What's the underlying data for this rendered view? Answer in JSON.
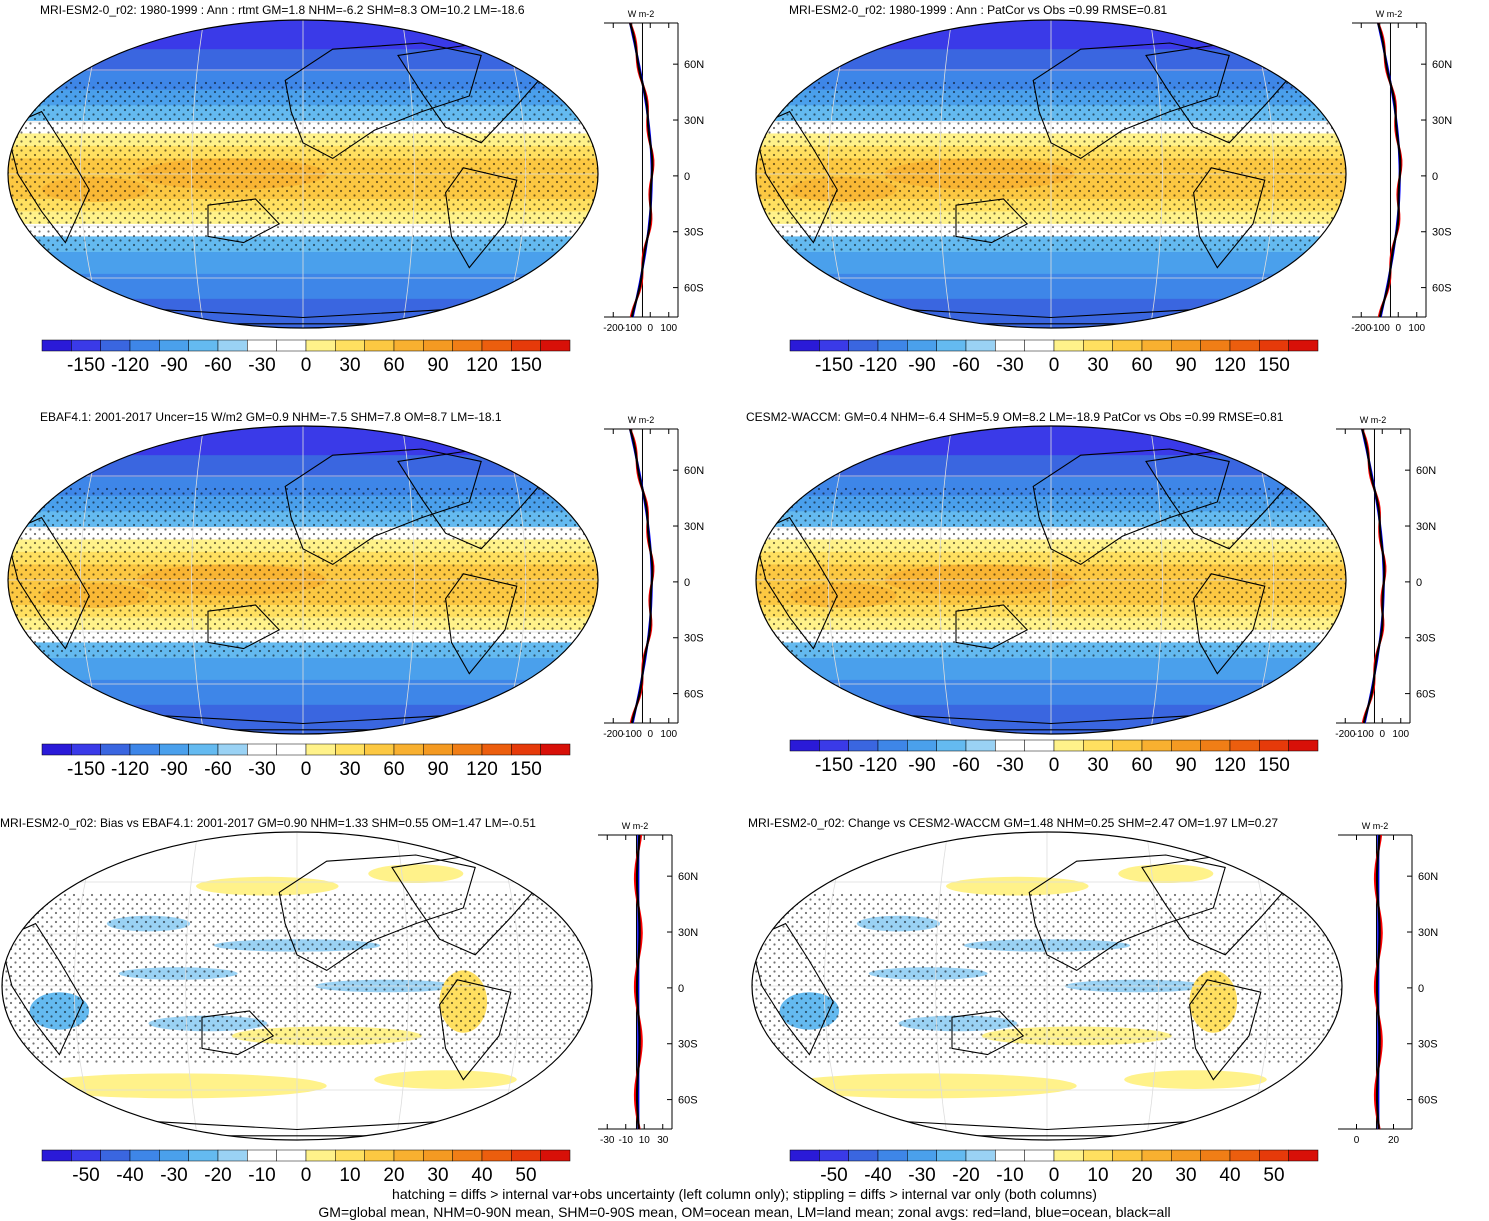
{
  "panels": [
    {
      "title": "MRI-ESM2-0_r02: 1980-1999 : Ann : rtmt GM=1.8 NHM=-6.2 SHM=8.3 OM=10.2 LM=-18.6",
      "kind": "absolute",
      "colorbar_labels": [
        "-150",
        "-120",
        "-90",
        "-60",
        "-30",
        "0",
        "30",
        "60",
        "90",
        "120",
        "150"
      ],
      "zonal_xticks": [
        "-200",
        "-100",
        "0",
        "100"
      ],
      "zonal_unit": "W m-2",
      "lat_labels": [
        "60N",
        "30N",
        "0",
        "30S",
        "60S"
      ]
    },
    {
      "title": "MRI-ESM2-0_r02: 1980-1999 : Ann : PatCor vs Obs =0.99 RMSE=0.81",
      "kind": "absolute",
      "colorbar_labels": [
        "-150",
        "-120",
        "-90",
        "-60",
        "-30",
        "0",
        "30",
        "60",
        "90",
        "120",
        "150"
      ],
      "zonal_xticks": [
        "-200",
        "-100",
        "0",
        "100"
      ],
      "zonal_unit": "W m-2",
      "lat_labels": [
        "60N",
        "30N",
        "0",
        "30S",
        "60S"
      ]
    },
    {
      "title": "EBAF4.1: 2001-2017 Uncer=15 W/m2 GM=0.9 NHM=-7.5 SHM=7.8 OM=8.7 LM=-18.1",
      "kind": "absolute",
      "colorbar_labels": [
        "-150",
        "-120",
        "-90",
        "-60",
        "-30",
        "0",
        "30",
        "60",
        "90",
        "120",
        "150"
      ],
      "zonal_xticks": [
        "-200",
        "-100",
        "0",
        "100"
      ],
      "zonal_unit": "W m-2",
      "lat_labels": [
        "60N",
        "30N",
        "0",
        "30S",
        "60S"
      ]
    },
    {
      "title": "CESM2-WACCM: GM=0.4 NHM=-6.4 SHM=5.9 OM=8.2 LM=-18.9 PatCor vs Obs =0.99 RMSE=0.81",
      "kind": "absolute",
      "colorbar_labels": [
        "-150",
        "-120",
        "-90",
        "-60",
        "-30",
        "0",
        "30",
        "60",
        "90",
        "120",
        "150"
      ],
      "zonal_xticks": [
        "-200",
        "-100",
        "0",
        "100"
      ],
      "zonal_unit": "W m-2",
      "lat_labels": [
        "60N",
        "30N",
        "0",
        "30S",
        "60S"
      ]
    },
    {
      "title": "MRI-ESM2-0_r02: Bias vs EBAF4.1: 2001-2017 GM=0.90 NHM=1.33 SHM=0.55 OM=1.47 LM=-0.51",
      "kind": "diff",
      "colorbar_labels": [
        "-50",
        "-40",
        "-30",
        "-20",
        "-10",
        "0",
        "10",
        "20",
        "30",
        "40",
        "50"
      ],
      "zonal_xticks": [
        "-30",
        "-10",
        "10",
        "30"
      ],
      "zonal_unit": "W m-2",
      "lat_labels": [
        "60N",
        "30N",
        "0",
        "30S",
        "60S"
      ]
    },
    {
      "title": "MRI-ESM2-0_r02: Change vs CESM2-WACCM GM=1.48 NHM=0.25 SHM=2.47 OM=1.97 LM=0.27",
      "kind": "diff",
      "colorbar_labels": [
        "-50",
        "-40",
        "-30",
        "-20",
        "-10",
        "0",
        "10",
        "20",
        "30",
        "40",
        "50"
      ],
      "zonal_xticks": [
        "0",
        "20"
      ],
      "zonal_unit": "W m-2",
      "lat_labels": [
        "60N",
        "30N",
        "0",
        "30S",
        "60S"
      ]
    }
  ],
  "palette": [
    "#2a1ad8",
    "#3a3ae8",
    "#3a66e0",
    "#3e86e8",
    "#4aa0ec",
    "#64baf0",
    "#9ad2f4",
    "#ffffff",
    "#ffffff",
    "#fff28a",
    "#ffe060",
    "#fcc842",
    "#f8b030",
    "#f49a22",
    "#f07e16",
    "#ec5e0e",
    "#e63a0a",
    "#d81008"
  ],
  "colors": {
    "land_line": "#000000",
    "ocean_line": "#0000ff",
    "all_line": "#000000",
    "land_zonal": "#ff0000"
  },
  "footnotes": [
    "hatching = diffs > internal var+obs uncertainty (left column only); stippling = diffs > internal var only (both columns)",
    "GM=global mean, NHM=0-90N mean, SHM=0-90S mean, OM=ocean mean, LM=land mean; zonal avgs: red=land, blue=ocean, black=all"
  ]
}
